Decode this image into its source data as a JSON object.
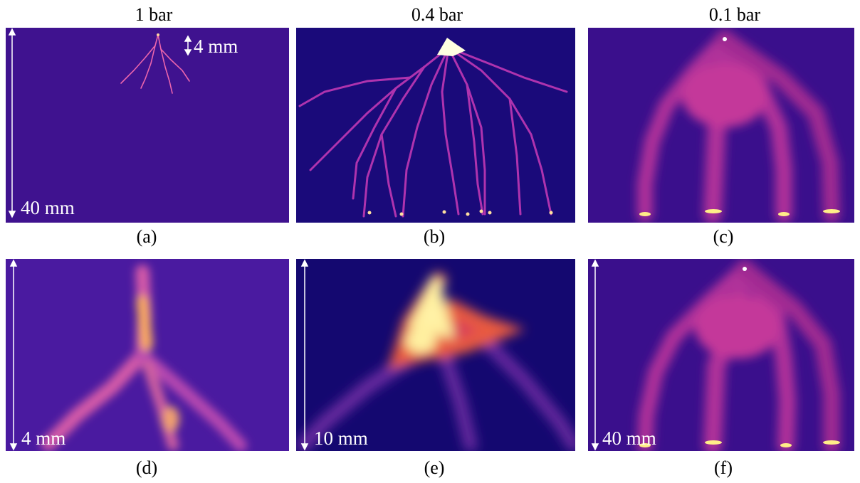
{
  "figure": {
    "columns": [
      "1 bar",
      "0.4 bar",
      "0.1 bar"
    ],
    "panels": [
      {
        "label": "(a)",
        "scale": "40 mm",
        "inset_scale": "4 mm"
      },
      {
        "label": "(b)"
      },
      {
        "label": "(c)"
      },
      {
        "label": "(d)",
        "scale": "4 mm"
      },
      {
        "label": "(e)",
        "scale": "10 mm"
      },
      {
        "label": "(f)",
        "scale": "40 mm"
      }
    ]
  }
}
